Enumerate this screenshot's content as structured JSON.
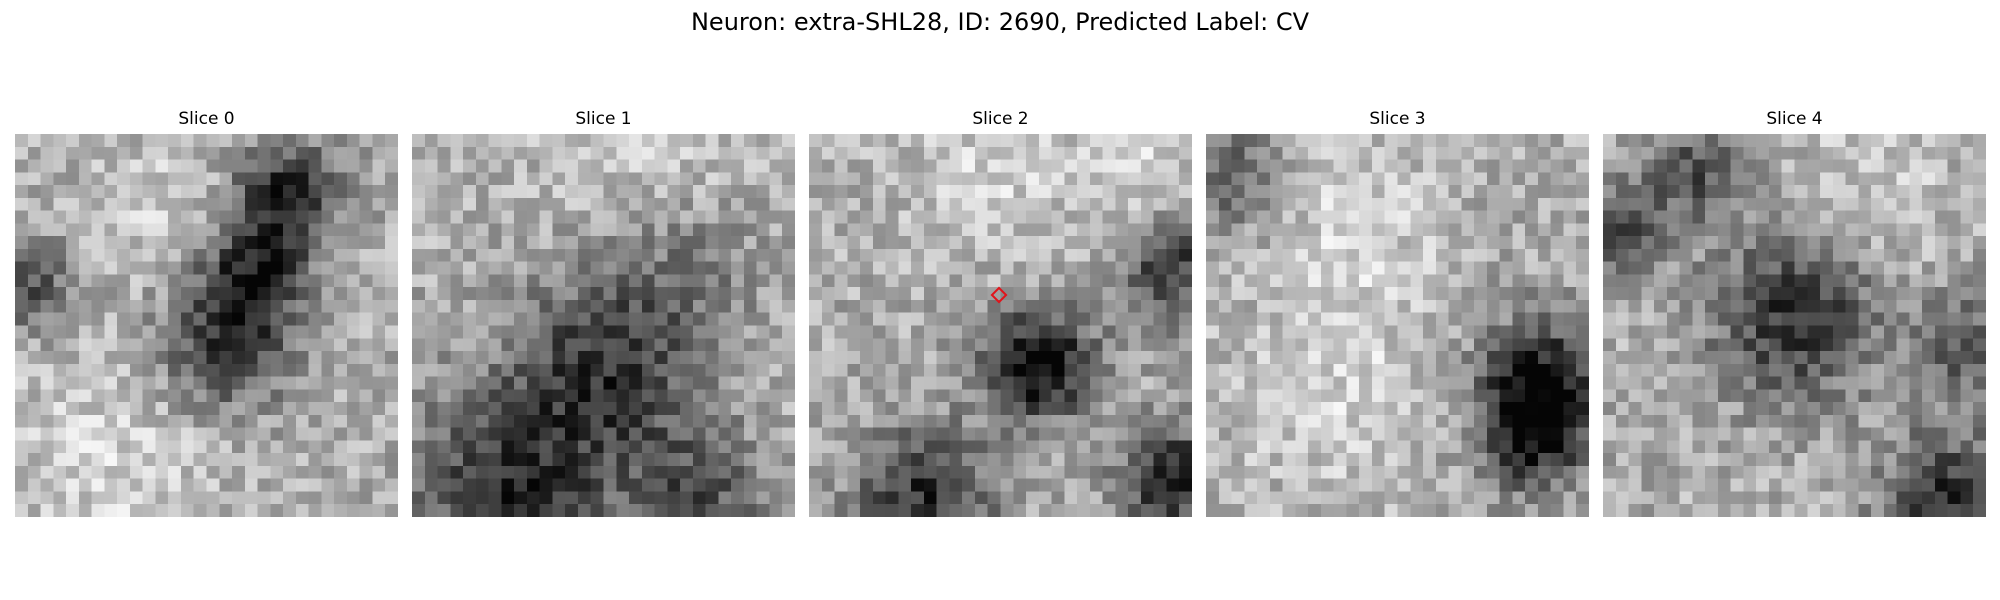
{
  "figure": {
    "title": "Neuron: extra-SHL28, ID: 2690, Predicted Label: CV"
  },
  "panels": [
    {
      "title": "Slice 0"
    },
    {
      "title": "Slice 1"
    },
    {
      "title": "Slice 2"
    },
    {
      "title": "Slice 3"
    },
    {
      "title": "Slice 4"
    }
  ],
  "colormap": "gray",
  "marker": {
    "color": "#e0141b",
    "shape": "diamond-outline"
  }
}
